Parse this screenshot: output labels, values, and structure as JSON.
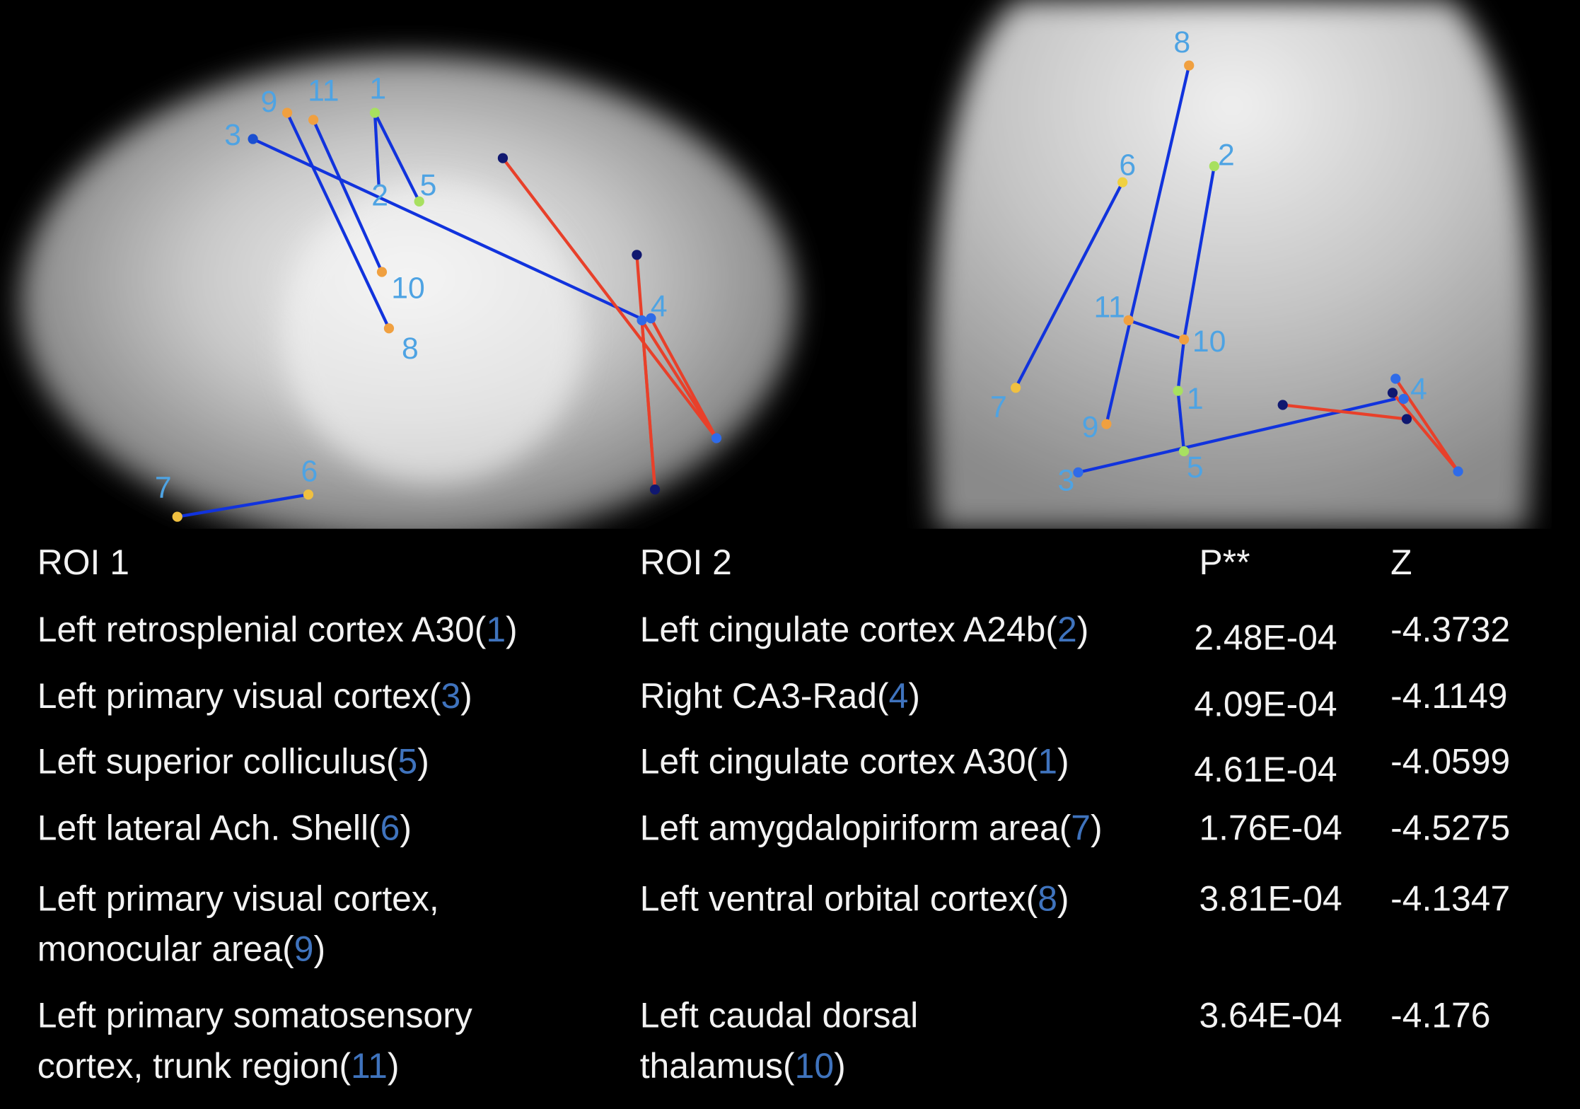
{
  "left_image": {
    "labels": [
      "1",
      "2",
      "3",
      "4",
      "5",
      "6",
      "7",
      "8",
      "9",
      "10",
      "11"
    ]
  },
  "right_image": {
    "labels": [
      "1",
      "2",
      "3",
      "4",
      "5",
      "6",
      "7",
      "8",
      "9",
      "10",
      "11"
    ]
  },
  "table": {
    "headers": [
      "ROI 1",
      "ROI 2",
      "P**",
      "Z"
    ],
    "rows": [
      {
        "roi1": [
          [
            "Left retrosplenial cortex  A30(",
            "1",
            ")"
          ]
        ],
        "roi2": [
          [
            "Left cingulate cortex  A24b(",
            "2",
            ")"
          ]
        ],
        "p": "2.48E-04",
        "z": "-4.3732"
      },
      {
        "roi1": [
          [
            "Left primary visual cortex(",
            "3",
            ")"
          ]
        ],
        "roi2": [
          [
            "Right CA3-Rad(",
            "4",
            ")"
          ]
        ],
        "p": "4.09E-04",
        "z": "-4.1149"
      },
      {
        "roi1": [
          [
            "Left superior colliculus(",
            "5",
            ")"
          ]
        ],
        "roi2": [
          [
            "Left cingulate cortex  A30(",
            "1",
            ")"
          ]
        ],
        "p": "4.61E-04",
        "z": "-4.0599"
      },
      {
        "roi1": [
          [
            "Left lateral Ach. Shell(",
            "6",
            ")"
          ]
        ],
        "roi2": [
          [
            "Left  amygdalopiriform area(",
            "7",
            ")"
          ]
        ],
        "p": "1.76E-04",
        "z": "-4.5275"
      },
      {
        "roi1": [
          [
            "Left primary visual cortex,"
          ],
          [
            "monocular area(",
            "9",
            ")"
          ]
        ],
        "roi2": [
          [
            "Left ventral orbital cortex(",
            "8",
            ")"
          ]
        ],
        "p": "3.81E-04",
        "z": "-4.1347"
      },
      {
        "roi1": [
          [
            "Left primary somatosensory"
          ],
          [
            "cortex, trunk region(",
            "11",
            ")"
          ]
        ],
        "roi2": [
          [
            "Left caudal dorsal"
          ],
          [
            "thalamus(",
            "10",
            ")"
          ]
        ],
        "p": "3.64E-04",
        "z": "-4.176"
      }
    ]
  }
}
